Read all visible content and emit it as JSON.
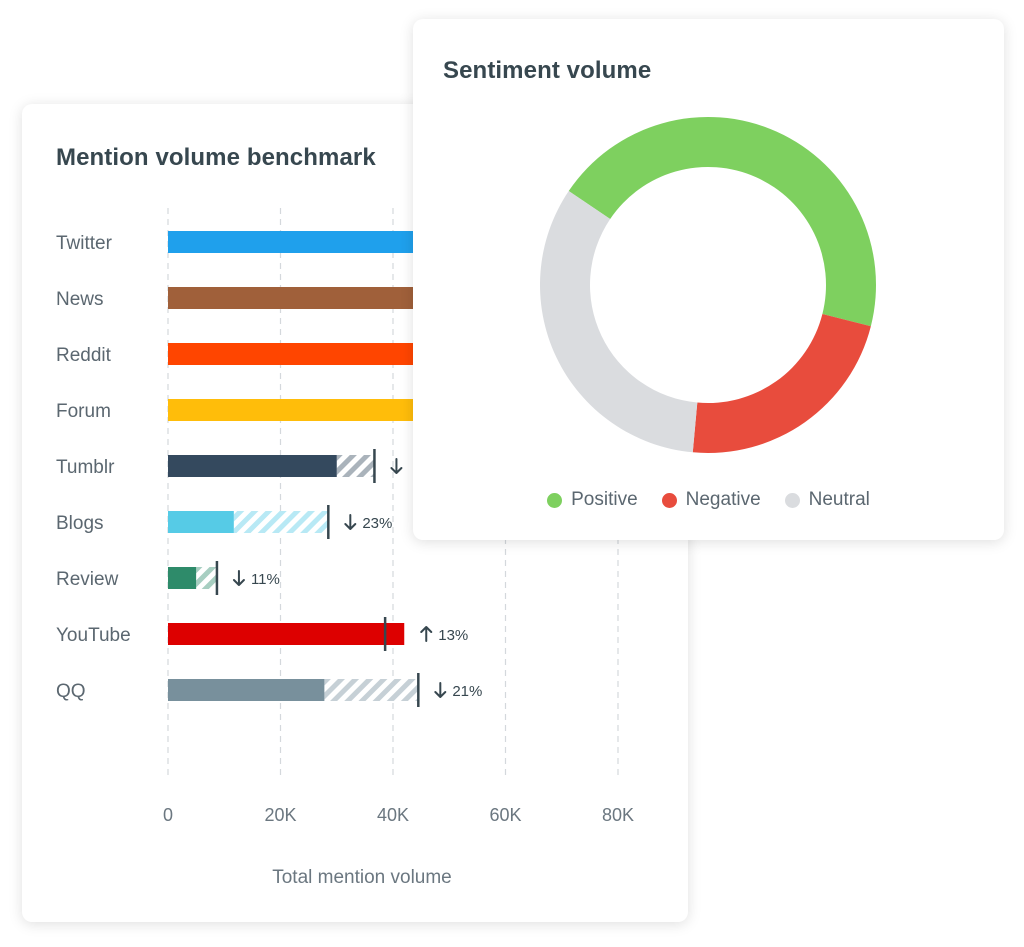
{
  "chart_data": [
    {
      "type": "bar",
      "title": "Mention volume benchmark",
      "xlabel": "Total mention volume",
      "ylabel": "",
      "xlim": [
        0,
        80000
      ],
      "x_ticks": [
        0,
        20000,
        40000,
        60000,
        80000
      ],
      "x_tick_labels": [
        "0",
        "20K",
        "40K",
        "60K",
        "80K"
      ],
      "grid": true,
      "categories": [
        "Twitter",
        "News",
        "Reddit",
        "Forum",
        "Tumblr",
        "Blogs",
        "Review",
        "YouTube",
        "QQ"
      ],
      "colors": [
        "#1fa0ec",
        "#a0603a",
        "#ff4500",
        "#ffbd0a",
        "#34495e",
        "#56cbe6",
        "#2e8b6a",
        "#dd0000",
        "#78909c"
      ],
      "series": [
        {
          "name": "",
          "values": [
            44000,
            44000,
            44000,
            44000,
            30000,
            11700,
            5000,
            42000,
            27800
          ]
        },
        {
          "name": "",
          "values": [
            null,
            null,
            null,
            null,
            36700,
            28500,
            8700,
            38600,
            44500
          ]
        }
      ],
      "changes": [
        null,
        null,
        null,
        null,
        {
          "dir": "down",
          "text": ""
        },
        {
          "dir": "down",
          "text": "23%"
        },
        {
          "dir": "down",
          "text": "11%"
        },
        {
          "dir": "up",
          "text": "13%"
        },
        {
          "dir": "down",
          "text": "21%"
        }
      ]
    },
    {
      "type": "pie",
      "title": "Sentiment volume",
      "donut": true,
      "labels": [
        "Positive",
        "Negative",
        "Neutral"
      ],
      "values": [
        44.5,
        22.5,
        33
      ],
      "colors": [
        "#7ed05f",
        "#e84c3d",
        "#dadcdf"
      ],
      "legend": "bottom"
    }
  ]
}
